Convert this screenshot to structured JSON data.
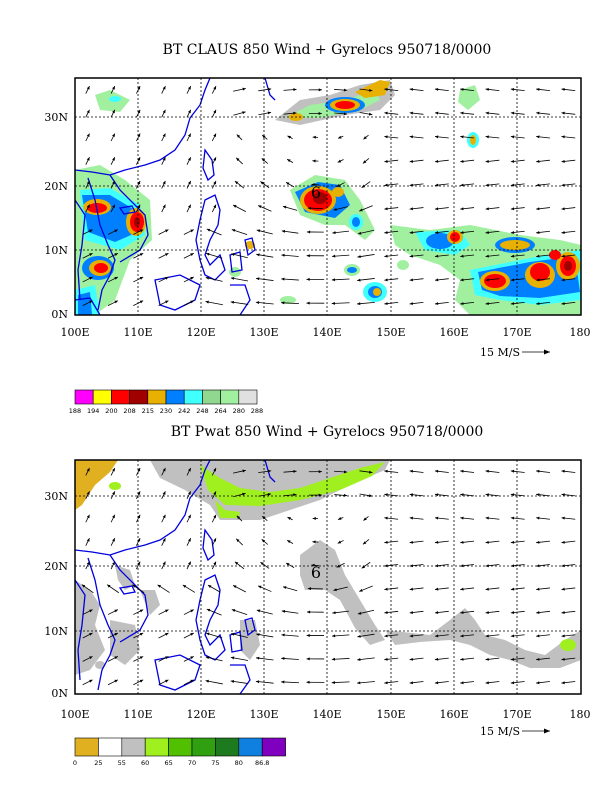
{
  "top_panel": {
    "title": "BT CLAUS 850 Wind + Gyrelocs 950718/0000",
    "storm_symbol": "6",
    "x_ticks": [
      "100E",
      "110E",
      "120E",
      "130E",
      "140E",
      "150E",
      "160E",
      "170E",
      "180"
    ],
    "y_ticks": [
      "0N",
      "10N",
      "20N",
      "30N"
    ],
    "vector_label": "15 M/S",
    "colorbar": {
      "labels": [
        "188",
        "194",
        "200",
        "208",
        "215",
        "230",
        "242",
        "248",
        "264",
        "280",
        "288"
      ],
      "colors": [
        "#ff00ff",
        "#ffff00",
        "#ff0000",
        "#a00000",
        "#e8b000",
        "#0080ff",
        "#40ffff",
        "#90d890",
        "#a0f0a0",
        "#e0e0e0"
      ]
    }
  },
  "bottom_panel": {
    "title": "BT Pwat 850 Wind + Gyrelocs 950718/0000",
    "storm_symbol": "6",
    "x_ticks": [
      "100E",
      "110E",
      "120E",
      "130E",
      "140E",
      "150E",
      "160E",
      "170E",
      "180"
    ],
    "y_ticks": [
      "0N",
      "10N",
      "20N",
      "30N"
    ],
    "vector_label": "15 M/S",
    "colorbar": {
      "labels": [
        "0",
        "25",
        "55",
        "60",
        "65",
        "70",
        "75",
        "80",
        "86.8"
      ],
      "colors": [
        "#e0b020",
        "#ffffff",
        "#c0c0c0",
        "#a0f020",
        "#50c000",
        "#30a010",
        "#1e7a1e",
        "#1080e0",
        "#8000c0"
      ]
    }
  },
  "colors": {
    "coastline": "#0000e0",
    "frame": "#000000",
    "grid": "#000000"
  }
}
